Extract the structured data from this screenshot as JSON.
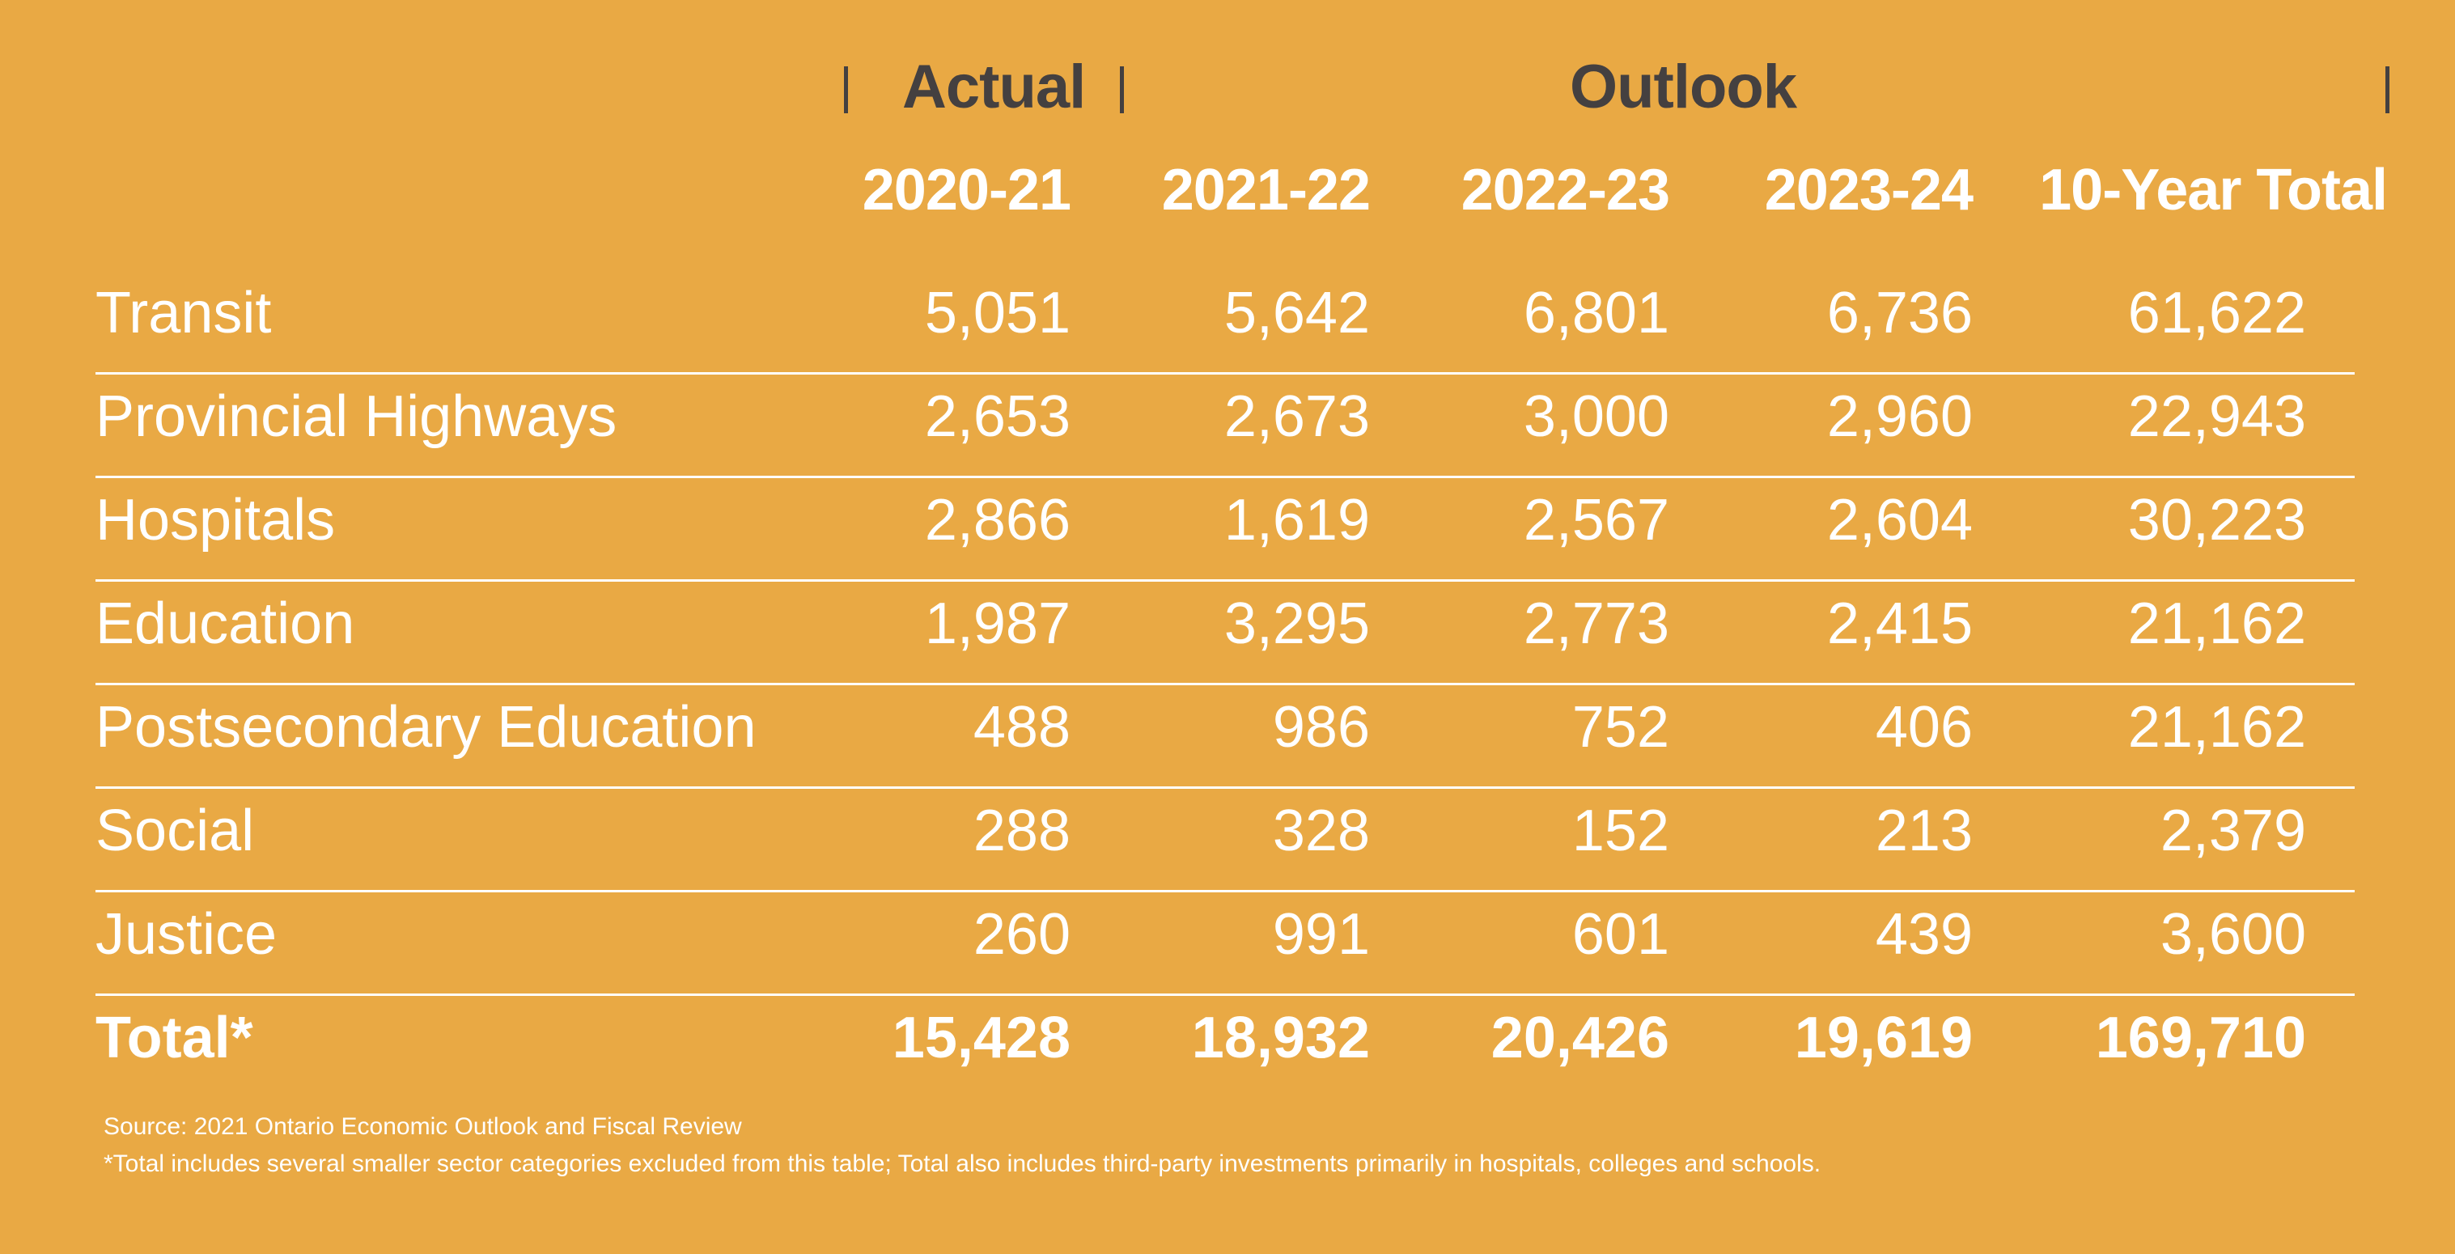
{
  "chart_data": {
    "type": "table",
    "group_headers": {
      "actual": "Actual",
      "outlook": "Outlook"
    },
    "columns": [
      "2020-21",
      "2021-22",
      "2022-23",
      "2023-24",
      "10-Year Total"
    ],
    "rows": [
      {
        "label": "Transit",
        "values": [
          "5,051",
          "5,642",
          "6,801",
          "6,736",
          "61,622"
        ]
      },
      {
        "label": "Provincial Highways",
        "values": [
          "2,653",
          "2,673",
          "3,000",
          "2,960",
          "22,943"
        ]
      },
      {
        "label": "Hospitals",
        "values": [
          "2,866",
          "1,619",
          "2,567",
          "2,604",
          "30,223"
        ]
      },
      {
        "label": "Education",
        "values": [
          "1,987",
          "3,295",
          "2,773",
          "2,415",
          "21,162"
        ]
      },
      {
        "label": "Postsecondary Education",
        "values": [
          "488",
          "986",
          "752",
          "406",
          "21,162"
        ]
      },
      {
        "label": "Social",
        "values": [
          "288",
          "328",
          "152",
          "213",
          "2,379"
        ]
      },
      {
        "label": "Justice",
        "values": [
          "260",
          "991",
          "601",
          "439",
          "3,600"
        ]
      }
    ],
    "total": {
      "label": "Total*",
      "values": [
        "15,428",
        "18,932",
        "20,426",
        "19,619",
        "169,710"
      ]
    }
  },
  "footnotes": {
    "source": "Source: 2021 Ontario Economic Outlook and Fiscal Review",
    "note": "*Total includes several smaller sector categories excluded from this table; Total also includes third-party investments primarily in hospitals, colleges and schools."
  },
  "colors": {
    "background": "#E9A944",
    "header_dark": "#444040",
    "text": "#ffffff"
  }
}
